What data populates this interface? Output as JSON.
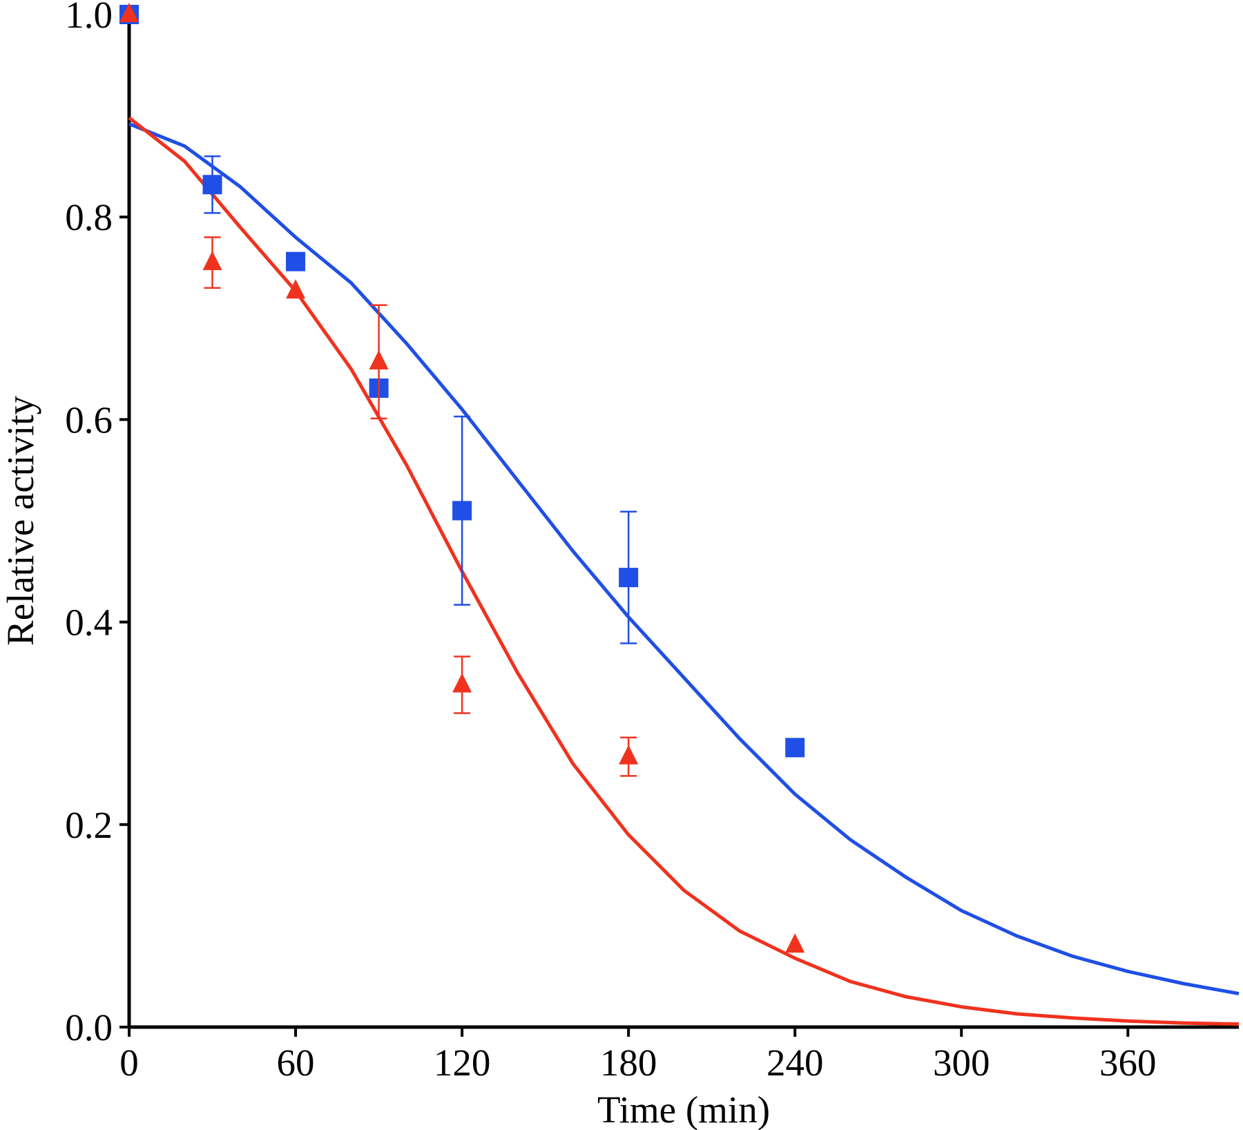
{
  "chart_data": {
    "type": "scatter",
    "xlabel": "Time (min)",
    "ylabel": "Relative activity",
    "xlim": [
      0,
      400
    ],
    "ylim": [
      0,
      1
    ],
    "xticks": [
      0,
      60,
      120,
      180,
      240,
      300,
      360
    ],
    "yticks": [
      {
        "value": 0,
        "label": "0.0"
      },
      0.2,
      0.4,
      0.6,
      0.8,
      {
        "value": 1,
        "label": "1.0"
      }
    ],
    "series": [
      {
        "type": "scatter",
        "marker": "square",
        "color": "#1f4fe6",
        "x": [
          0,
          30,
          60,
          90,
          120,
          180,
          240
        ],
        "values": [
          1.0,
          0.832,
          0.756,
          0.631,
          0.51,
          0.444,
          0.276
        ],
        "errors": [
          null,
          0.028,
          null,
          null,
          0.093,
          0.065,
          null
        ]
      },
      {
        "type": "scatter",
        "marker": "triangle",
        "color": "#f0321e",
        "x": [
          0,
          30,
          60,
          90,
          120,
          180,
          240
        ],
        "values": [
          1.0,
          0.755,
          0.727,
          0.657,
          0.338,
          0.267,
          0.081
        ],
        "errors": [
          null,
          0.025,
          null,
          0.056,
          0.028,
          0.019,
          null
        ]
      },
      {
        "type": "line",
        "color": "#1f4fe6",
        "x": [
          0,
          20,
          40,
          60,
          80,
          100,
          120,
          140,
          160,
          180,
          200,
          220,
          240,
          260,
          280,
          300,
          320,
          340,
          360,
          380,
          400
        ],
        "values": [
          0.892,
          0.87,
          0.83,
          0.78,
          0.735,
          0.675,
          0.61,
          0.54,
          0.47,
          0.405,
          0.345,
          0.285,
          0.23,
          0.185,
          0.148,
          0.115,
          0.09,
          0.07,
          0.055,
          0.043,
          0.033
        ]
      },
      {
        "type": "line",
        "color": "#f0321e",
        "x": [
          0,
          20,
          40,
          60,
          80,
          100,
          120,
          140,
          160,
          180,
          200,
          220,
          240,
          260,
          280,
          300,
          320,
          340,
          360,
          380,
          400
        ],
        "values": [
          0.898,
          0.855,
          0.79,
          0.727,
          0.65,
          0.555,
          0.45,
          0.35,
          0.26,
          0.19,
          0.135,
          0.095,
          0.068,
          0.045,
          0.03,
          0.02,
          0.013,
          0.009,
          0.006,
          0.004,
          0.003
        ]
      }
    ]
  }
}
